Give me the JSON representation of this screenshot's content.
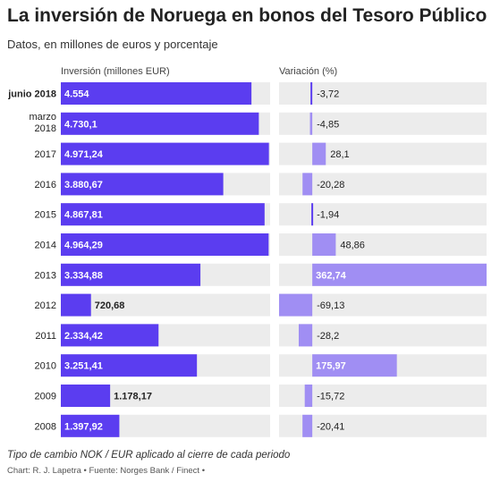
{
  "header": {
    "title": "La inversión de Noruega en bonos del Tesoro Público",
    "subtitle": "Datos, en millones de euros y porcentaje"
  },
  "columns": {
    "investment_label": "Inversión (millones EUR)",
    "change_label": "Variación (%)"
  },
  "footer": {
    "note": "Tipo de cambio NOK / EUR aplicado al cierre de cada periodo",
    "source": "Chart: R. J. Lapetra • Fuente: Norges Bank / Finect •"
  },
  "colors": {
    "investment_bar": "#5b3df0",
    "change_bar": "#a08ef3",
    "track": "#ececec",
    "change_negative_thin": "#5b3df0"
  },
  "chart_data": {
    "type": "bar",
    "orientation": "horizontal",
    "categories": [
      [
        "junio 2018"
      ],
      [
        "marzo",
        "2018"
      ],
      [
        "2017"
      ],
      [
        "2016"
      ],
      [
        "2015"
      ],
      [
        "2014"
      ],
      [
        "2013"
      ],
      [
        "2012"
      ],
      [
        "2011"
      ],
      [
        "2010"
      ],
      [
        "2009"
      ],
      [
        "2008"
      ]
    ],
    "highlight_category_index": 0,
    "series": [
      {
        "name": "Inversión (millones EUR)",
        "values": [
          4554,
          4730.1,
          4971.24,
          3880.67,
          4867.81,
          4964.29,
          3334.88,
          720.68,
          2334.42,
          3251.41,
          1178.17,
          1397.92
        ],
        "labels": [
          "4.554",
          "4.730,1",
          "4.971,24",
          "3.880,67",
          "4.867,81",
          "4.964,29",
          "3.334,88",
          "720,68",
          "2.334,42",
          "3.251,41",
          "1.178,17",
          "1.397,92"
        ],
        "xlim": [
          0,
          5000
        ]
      },
      {
        "name": "Variación (%)",
        "values": [
          -3.72,
          -4.85,
          28.1,
          -20.28,
          -1.94,
          48.86,
          362.74,
          -69.13,
          -28.2,
          175.97,
          -15.72,
          -20.41
        ],
        "labels": [
          "-3,72",
          "-4,85",
          "28,1",
          "-20,28",
          "-1,94",
          "48,86",
          "362,74",
          "-69,13",
          "-28,2",
          "175,97",
          "-15,72",
          "-20,41"
        ],
        "xlim": [
          -69.13,
          362.74
        ]
      }
    ]
  }
}
